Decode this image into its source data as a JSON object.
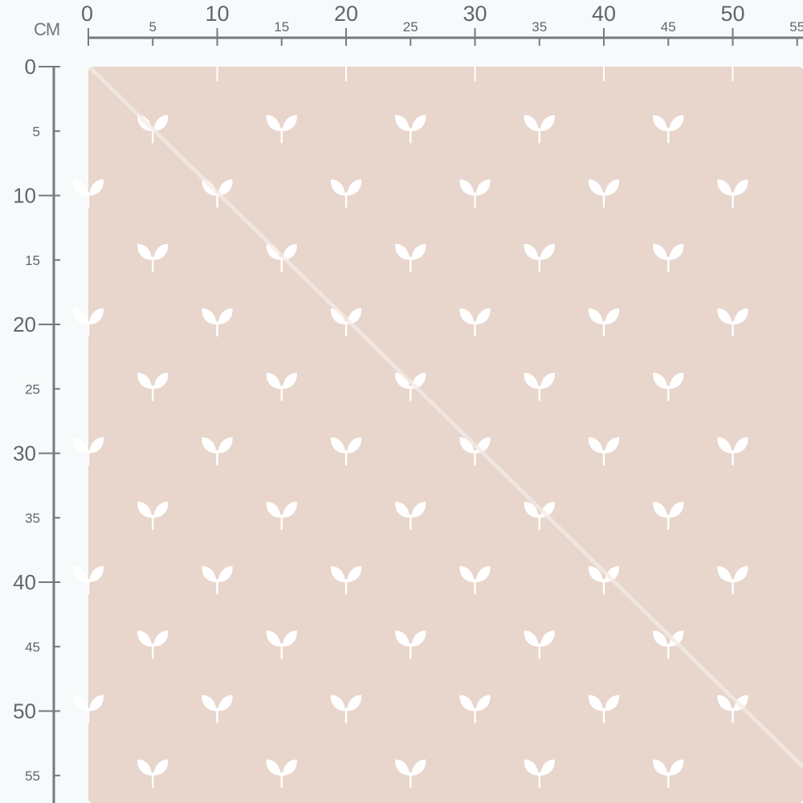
{
  "ruler": {
    "unit_label": "CM",
    "top_labels": [
      "0",
      "5",
      "10",
      "15",
      "20",
      "25",
      "30",
      "35",
      "40",
      "45",
      "50",
      "55"
    ],
    "left_labels": [
      "0",
      "5",
      "10",
      "15",
      "20",
      "25",
      "30",
      "35",
      "40",
      "45",
      "50",
      "55"
    ]
  },
  "fabric": {
    "pattern": "sprout-icon",
    "background_color": "#e8d5cc",
    "motif_color": "#ffffff",
    "ruler_color": "#737b80"
  }
}
